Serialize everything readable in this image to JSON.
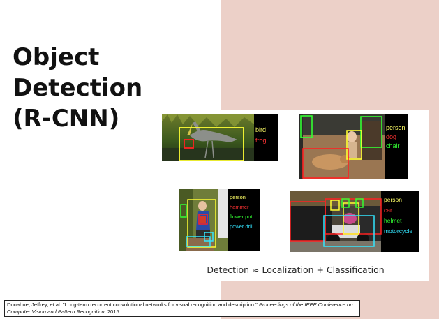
{
  "slide": {
    "title_lines": [
      "Object",
      "Detection",
      "(R-CNN)"
    ],
    "caption": "Detection ≈ Localization + Classification",
    "citation": {
      "text": "Donahue, Jeffrey, et al. \"Long-term recurrent convolutional networks for visual recognition and description.\" ",
      "journal": "Proceedings of the IEEE Conference on Computer Vision and Pattern Recognition",
      "year": ". 2015."
    }
  },
  "panels": [
    {
      "labels": [
        {
          "text": "bird",
          "color": "#ffff66"
        },
        {
          "text": "frog",
          "color": "#ff3333"
        }
      ]
    },
    {
      "labels": [
        {
          "text": "person",
          "color": "#ffff66"
        },
        {
          "text": "dog",
          "color": "#ff3333"
        },
        {
          "text": "chair",
          "color": "#33ff33"
        }
      ]
    },
    {
      "labels": [
        {
          "text": "person",
          "color": "#ffff66"
        },
        {
          "text": "hammer",
          "color": "#ff3333"
        },
        {
          "text": "flower pot",
          "color": "#33ff33"
        },
        {
          "text": "power drill",
          "color": "#33e6ff"
        }
      ]
    },
    {
      "labels": [
        {
          "text": "person",
          "color": "#ffff66"
        },
        {
          "text": "car",
          "color": "#ff3333"
        },
        {
          "text": "helmet",
          "color": "#33ff33"
        },
        {
          "text": "motorcycle",
          "color": "#33e6ff"
        }
      ]
    }
  ],
  "colors": {
    "background_panel": "#ecd0c8",
    "label_bg": "#000000"
  }
}
